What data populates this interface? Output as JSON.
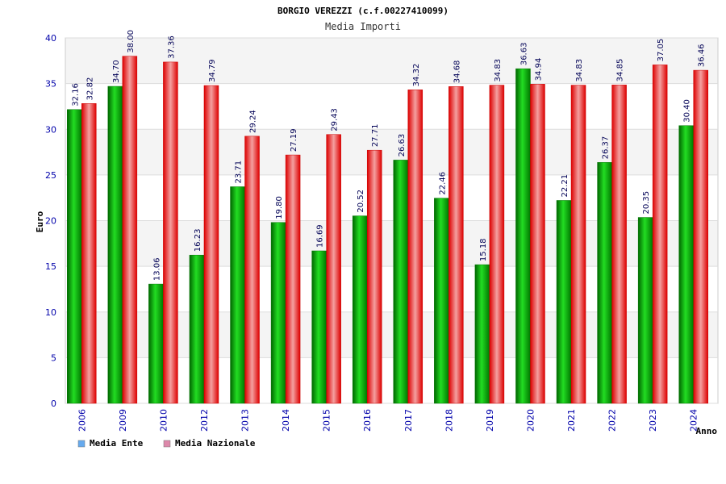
{
  "chart_data": {
    "type": "bar",
    "title": "BORGIO VEREZZI (c.f.00227410099)",
    "subtitle": "Media Importi",
    "xlabel": "Anno",
    "ylabel": "Euro",
    "ylim": [
      0,
      40
    ],
    "yticks": [
      0,
      5,
      10,
      15,
      20,
      25,
      30,
      35,
      40
    ],
    "grid": true,
    "legend_position": "bottom-left",
    "categories": [
      "2006",
      "2009",
      "2010",
      "2012",
      "2013",
      "2014",
      "2015",
      "2016",
      "2017",
      "2018",
      "2019",
      "2020",
      "2021",
      "2022",
      "2023",
      "2024"
    ],
    "series": [
      {
        "name": "Media Ente",
        "color": "#00aa00",
        "legend_color": "#66aaee",
        "values": [
          32.16,
          34.7,
          13.06,
          16.23,
          23.71,
          19.8,
          16.69,
          20.52,
          26.63,
          22.46,
          15.18,
          36.63,
          22.21,
          26.37,
          20.35,
          30.4
        ],
        "labels": [
          "32.16",
          "34.70",
          "13.06",
          "16.23",
          "23.71",
          "19.80",
          "16.69",
          "20.52",
          "26.63",
          "22.46",
          "15.18",
          "36.63",
          "22.21",
          "26.37",
          "20.35",
          "30.40"
        ]
      },
      {
        "name": "Media Nazionale",
        "color": "#ee2222",
        "legend_color": "#dd88aa",
        "values": [
          32.82,
          38.0,
          37.36,
          34.79,
          29.24,
          27.19,
          29.43,
          27.71,
          34.32,
          34.68,
          34.83,
          34.94,
          34.83,
          34.85,
          37.05,
          36.46
        ],
        "labels": [
          "32.82",
          "38.00",
          "37.36",
          "34.79",
          "29.24",
          "27.19",
          "29.43",
          "27.71",
          "34.32",
          "34.68",
          "34.83",
          "34.94",
          "34.83",
          "34.85",
          "37.05",
          "36.46"
        ]
      }
    ]
  }
}
